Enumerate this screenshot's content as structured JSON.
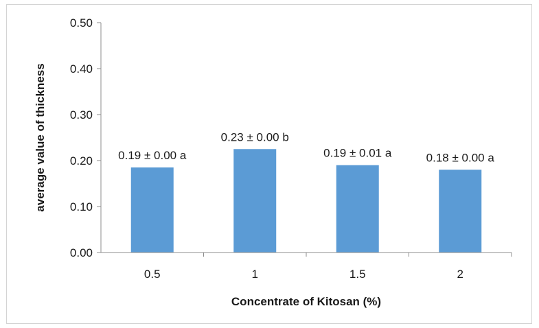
{
  "chart_data": {
    "type": "bar",
    "title": "",
    "xlabel": "Concentrate of Kitosan (%)",
    "ylabel": "average value of thickness",
    "categories": [
      "0.5",
      "1",
      "1.5",
      "2"
    ],
    "values": [
      0.185,
      0.225,
      0.19,
      0.18
    ],
    "data_labels": [
      "0.19 ± 0.00 a",
      "0.23 ± 0.00 b",
      "0.19 ± 0.01 a",
      "0.18 ± 0.00 a"
    ],
    "ylim": [
      0,
      0.5
    ],
    "yticks": [
      0.0,
      0.1,
      0.2,
      0.3,
      0.4,
      0.5
    ],
    "ytick_labels": [
      "0.00",
      "0.10",
      "0.20",
      "0.30",
      "0.40",
      "0.50"
    ],
    "bar_color": "#5b9bd5",
    "grid": false,
    "legend": "none"
  }
}
